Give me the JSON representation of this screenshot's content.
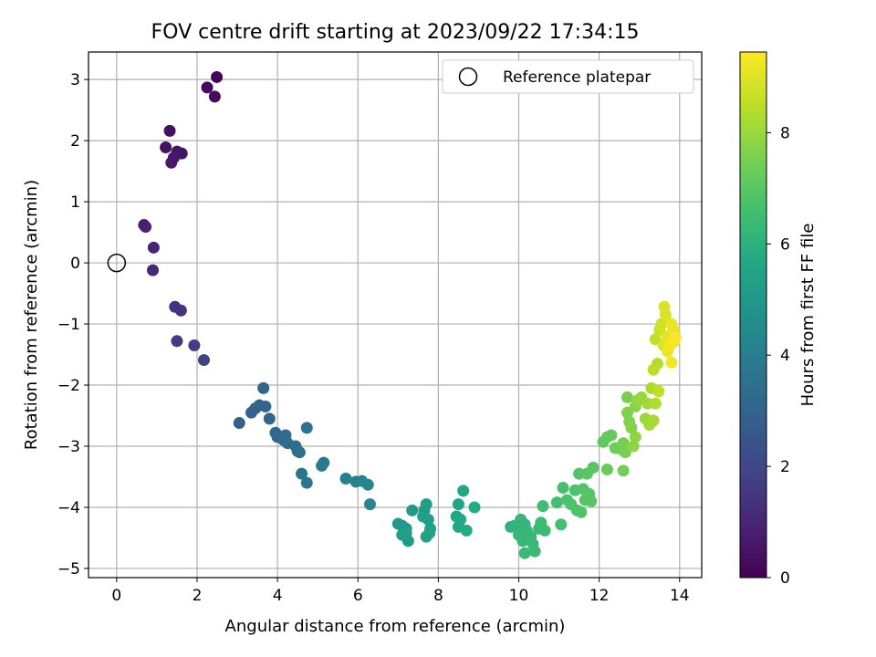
{
  "chart_data": {
    "type": "scatter",
    "title": "FOV centre drift starting at 2023/09/22 17:34:15",
    "xlabel": "Angular distance from reference (arcmin)",
    "ylabel": "Rotation from reference (arcmin)",
    "xlim": [
      -0.7,
      14.55
    ],
    "ylim": [
      -5.15,
      3.45
    ],
    "xticks": [
      0,
      2,
      4,
      6,
      8,
      10,
      12,
      14
    ],
    "yticks": [
      -5,
      -4,
      -3,
      -2,
      -1,
      0,
      1,
      2,
      3
    ],
    "xtick_labels": [
      "0",
      "2",
      "4",
      "6",
      "8",
      "10",
      "12",
      "14"
    ],
    "ytick_labels": [
      "−5",
      "−4",
      "−3",
      "−2",
      "−1",
      "0",
      "1",
      "2",
      "3"
    ],
    "grid": true,
    "legend": {
      "position": "top-right",
      "entries": [
        {
          "label": "Reference platepar",
          "marker": "open-circle"
        }
      ]
    },
    "reference_point": {
      "x": 0,
      "y": 0
    },
    "colorbar": {
      "label": "Hours from first FF file",
      "colormap": "viridis",
      "range": [
        0,
        9.45
      ],
      "ticks": [
        0,
        2,
        4,
        6,
        8
      ],
      "tick_labels": [
        "0",
        "2",
        "4",
        "6",
        "8"
      ]
    },
    "points": [
      [
        2.49,
        3.04,
        0.2
      ],
      [
        2.25,
        2.87,
        0.25
      ],
      [
        2.44,
        2.72,
        0.3
      ],
      [
        1.32,
        2.16,
        0.4
      ],
      [
        1.22,
        1.89,
        0.45
      ],
      [
        1.5,
        1.82,
        0.5
      ],
      [
        1.62,
        1.79,
        0.55
      ],
      [
        1.42,
        1.72,
        0.6
      ],
      [
        1.36,
        1.64,
        0.65
      ],
      [
        0.68,
        0.62,
        0.8
      ],
      [
        0.72,
        0.59,
        0.85
      ],
      [
        0.92,
        0.25,
        0.95
      ],
      [
        0.9,
        -0.12,
        1.05
      ],
      [
        1.45,
        -0.72,
        1.35
      ],
      [
        1.6,
        -0.78,
        1.4
      ],
      [
        1.5,
        -1.28,
        1.6
      ],
      [
        1.93,
        -1.35,
        1.7
      ],
      [
        2.17,
        -1.59,
        1.85
      ],
      [
        3.05,
        -2.62,
        2.8
      ],
      [
        3.35,
        -2.45,
        2.9
      ],
      [
        3.45,
        -2.38,
        2.95
      ],
      [
        3.55,
        -2.33,
        3.0
      ],
      [
        3.65,
        -2.05,
        3.05
      ],
      [
        3.7,
        -2.35,
        3.05
      ],
      [
        3.8,
        -2.55,
        3.1
      ],
      [
        3.95,
        -2.78,
        3.15
      ],
      [
        4.0,
        -2.85,
        3.2
      ],
      [
        4.2,
        -2.82,
        3.25
      ],
      [
        4.15,
        -2.9,
        3.3
      ],
      [
        4.25,
        -2.95,
        3.35
      ],
      [
        4.45,
        -3.0,
        3.4
      ],
      [
        4.5,
        -3.08,
        3.45
      ],
      [
        4.55,
        -3.1,
        3.5
      ],
      [
        4.73,
        -2.7,
        3.55
      ],
      [
        4.6,
        -3.45,
        3.6
      ],
      [
        4.73,
        -3.6,
        3.7
      ],
      [
        5.15,
        -3.27,
        3.8
      ],
      [
        5.1,
        -3.32,
        3.85
      ],
      [
        5.7,
        -3.53,
        4.1
      ],
      [
        5.95,
        -3.58,
        4.2
      ],
      [
        6.1,
        -3.57,
        4.25
      ],
      [
        6.25,
        -3.63,
        4.3
      ],
      [
        6.3,
        -3.95,
        4.35
      ],
      [
        7.0,
        -4.27,
        5.0
      ],
      [
        7.1,
        -4.3,
        5.05
      ],
      [
        7.2,
        -4.35,
        5.1
      ],
      [
        7.25,
        -4.55,
        5.15
      ],
      [
        7.35,
        -4.05,
        5.15
      ],
      [
        7.1,
        -4.45,
        5.2
      ],
      [
        7.2,
        -4.42,
        5.2
      ],
      [
        7.65,
        -4.05,
        5.25
      ],
      [
        7.7,
        -3.95,
        5.25
      ],
      [
        7.62,
        -4.15,
        5.3
      ],
      [
        7.75,
        -4.2,
        5.3
      ],
      [
        7.8,
        -4.35,
        5.35
      ],
      [
        7.7,
        -4.48,
        5.35
      ],
      [
        7.78,
        -4.42,
        5.4
      ],
      [
        8.5,
        -3.95,
        5.55
      ],
      [
        8.62,
        -3.73,
        5.6
      ],
      [
        8.45,
        -4.15,
        5.6
      ],
      [
        8.55,
        -4.2,
        5.65
      ],
      [
        8.5,
        -4.32,
        5.65
      ],
      [
        8.7,
        -4.38,
        5.7
      ],
      [
        8.9,
        -4.0,
        5.75
      ],
      [
        9.8,
        -4.32,
        6.1
      ],
      [
        9.9,
        -4.3,
        6.15
      ],
      [
        10.0,
        -4.35,
        6.15
      ],
      [
        10.05,
        -4.2,
        6.2
      ],
      [
        10.15,
        -4.28,
        6.2
      ],
      [
        10.0,
        -4.45,
        6.25
      ],
      [
        10.1,
        -4.55,
        6.25
      ],
      [
        10.2,
        -4.38,
        6.3
      ],
      [
        10.3,
        -4.48,
        6.3
      ],
      [
        10.35,
        -4.6,
        6.35
      ],
      [
        10.15,
        -4.75,
        6.35
      ],
      [
        10.4,
        -4.72,
        6.4
      ],
      [
        10.5,
        -4.35,
        6.4
      ],
      [
        10.55,
        -4.25,
        6.45
      ],
      [
        10.65,
        -4.38,
        6.45
      ],
      [
        10.6,
        -3.98,
        6.5
      ],
      [
        10.95,
        -3.92,
        6.55
      ],
      [
        11.05,
        -4.28,
        6.6
      ],
      [
        11.1,
        -3.68,
        6.65
      ],
      [
        11.2,
        -3.88,
        6.7
      ],
      [
        11.3,
        -3.95,
        6.7
      ],
      [
        11.4,
        -3.72,
        6.75
      ],
      [
        11.45,
        -4.05,
        6.75
      ],
      [
        11.55,
        -4.08,
        6.8
      ],
      [
        11.5,
        -3.45,
        6.85
      ],
      [
        11.6,
        -3.7,
        6.85
      ],
      [
        11.65,
        -3.88,
        6.9
      ],
      [
        11.75,
        -3.78,
        6.9
      ],
      [
        11.8,
        -3.9,
        6.95
      ],
      [
        11.85,
        -3.35,
        6.95
      ],
      [
        11.7,
        -3.45,
        7.0
      ],
      [
        12.1,
        -2.93,
        7.1
      ],
      [
        12.2,
        -2.85,
        7.15
      ],
      [
        12.3,
        -2.82,
        7.2
      ],
      [
        12.2,
        -3.38,
        7.25
      ],
      [
        12.4,
        -3.03,
        7.3
      ],
      [
        12.55,
        -3.05,
        7.35
      ],
      [
        12.6,
        -3.4,
        7.4
      ],
      [
        12.6,
        -2.95,
        7.45
      ],
      [
        12.7,
        -2.2,
        7.5
      ],
      [
        12.65,
        -3.1,
        7.55
      ],
      [
        12.75,
        -2.6,
        7.6
      ],
      [
        12.7,
        -2.45,
        7.65
      ],
      [
        12.8,
        -2.7,
        7.7
      ],
      [
        12.9,
        -2.35,
        7.75
      ],
      [
        12.85,
        -3.0,
        7.8
      ],
      [
        12.9,
        -2.85,
        7.85
      ],
      [
        12.95,
        -2.25,
        7.9
      ],
      [
        13.05,
        -2.2,
        8.0
      ],
      [
        13.15,
        -2.55,
        8.05
      ],
      [
        13.2,
        -2.3,
        8.1
      ],
      [
        13.25,
        -2.65,
        8.15
      ],
      [
        13.35,
        -2.58,
        8.2
      ],
      [
        13.3,
        -2.05,
        8.25
      ],
      [
        13.4,
        -2.3,
        8.3
      ],
      [
        13.45,
        -1.65,
        8.4
      ],
      [
        13.35,
        -1.75,
        8.45
      ],
      [
        13.48,
        -2.1,
        8.5
      ],
      [
        13.4,
        -1.25,
        8.6
      ],
      [
        13.5,
        -1.1,
        8.7
      ],
      [
        13.55,
        -1.0,
        8.8
      ],
      [
        13.62,
        -0.72,
        8.9
      ],
      [
        13.65,
        -0.85,
        8.95
      ],
      [
        13.6,
        -1.35,
        9.0
      ],
      [
        13.7,
        -1.2,
        9.05
      ],
      [
        13.75,
        -1.28,
        9.1
      ],
      [
        13.8,
        -1.0,
        9.15
      ],
      [
        13.7,
        -1.45,
        9.2
      ],
      [
        13.85,
        -1.1,
        9.2
      ],
      [
        13.75,
        -1.35,
        9.25
      ],
      [
        13.8,
        -1.63,
        9.3
      ],
      [
        13.85,
        -1.3,
        9.35
      ],
      [
        13.9,
        -1.22,
        9.4
      ]
    ]
  }
}
